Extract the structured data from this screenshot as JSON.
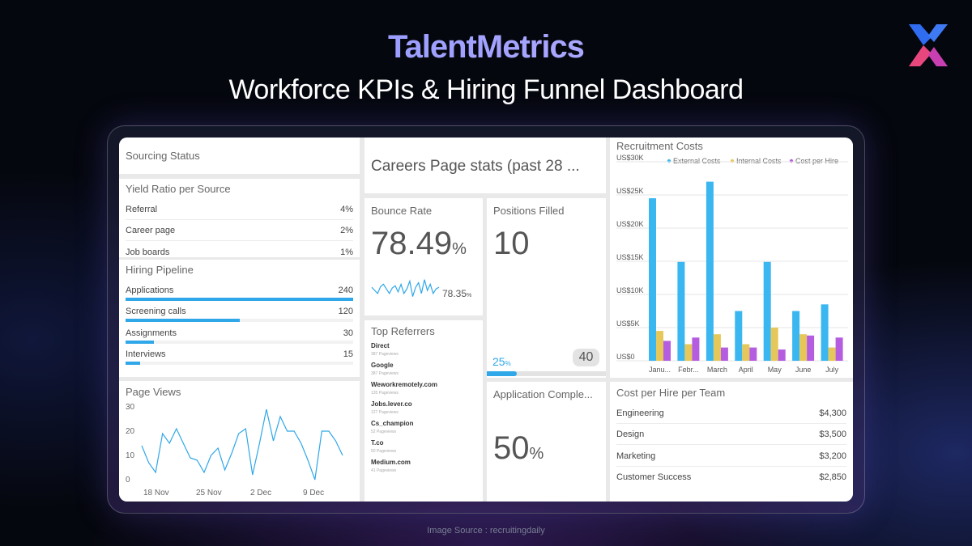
{
  "header": {
    "brand": "TalentMetrics",
    "subtitle": "Workforce KPIs & Hiring Funnel Dashboard",
    "logo_icon": "x-logo-icon"
  },
  "credit": "Image Source : recruitingdaily",
  "colors": {
    "accent_blue": "#2fa7e8",
    "external": "#3ab6f0",
    "internal": "#e6c85a",
    "cost_per_hire": "#b55de0"
  },
  "sourcing_status": {
    "title": "Sourcing Status"
  },
  "yield_ratio": {
    "title": "Yield Ratio per Source",
    "rows": [
      {
        "label": "Referral",
        "value": "4%"
      },
      {
        "label": "Career page",
        "value": "2%"
      },
      {
        "label": "Job boards",
        "value": "1%"
      }
    ]
  },
  "hiring_pipeline": {
    "title": "Hiring Pipeline",
    "rows": [
      {
        "label": "Applications",
        "value": "240",
        "fraction": 1.0
      },
      {
        "label": "Screening calls",
        "value": "120",
        "fraction": 0.5
      },
      {
        "label": "Assignments",
        "value": "30",
        "fraction": 0.125
      },
      {
        "label": "Interviews",
        "value": "15",
        "fraction": 0.0625
      }
    ]
  },
  "page_views": {
    "title": "Page Views",
    "y_ticks": [
      "30",
      "20",
      "10",
      "0"
    ],
    "x_ticks": [
      "18 Nov",
      "25 Nov",
      "2 Dec",
      "9 Dec"
    ],
    "values": [
      14,
      7,
      3,
      19,
      15,
      21,
      15,
      9,
      8,
      3,
      10,
      13,
      4,
      11,
      19,
      21,
      2,
      15,
      29,
      16,
      26,
      20,
      20,
      15,
      8,
      0,
      20,
      20,
      16,
      10
    ]
  },
  "careers_stats": {
    "title": "Careers Page stats (past 28 ..."
  },
  "bounce_rate": {
    "title": "Bounce Rate",
    "value": "78.49",
    "unit": "%",
    "spark_value": "78.35",
    "spark_unit": "%",
    "spark": [
      60,
      50,
      40,
      62,
      70,
      55,
      40,
      58,
      65,
      45,
      70,
      40,
      55,
      80,
      30,
      60,
      75,
      40,
      85,
      50,
      70,
      40,
      55,
      60
    ]
  },
  "positions_filled": {
    "title": "Positions Filled",
    "value": "10",
    "percent": "25",
    "percent_unit": "%",
    "target": "40",
    "progress": 0.25
  },
  "top_referrers": {
    "title": "Top Referrers",
    "items": [
      {
        "name": "Direct",
        "sub": "387 Pageviews"
      },
      {
        "name": "Google",
        "sub": "387 Pageviews"
      },
      {
        "name": "Weworkremotely.com",
        "sub": "135 Pageviews"
      },
      {
        "name": "Jobs.lever.co",
        "sub": "127 Pageviews"
      },
      {
        "name": "Cs_champion",
        "sub": "52 Pageviews"
      },
      {
        "name": "T.co",
        "sub": "50 Pageviews"
      },
      {
        "name": "Medium.com",
        "sub": "41 Pageviews"
      }
    ]
  },
  "application_completion": {
    "title": "Application Comple...",
    "value": "50",
    "unit": "%"
  },
  "cost_per_team": {
    "title": "Cost per Hire per Team",
    "rows": [
      {
        "label": "Engineering",
        "value": "$4,300"
      },
      {
        "label": "Design",
        "value": "$3,500"
      },
      {
        "label": "Marketing",
        "value": "$3,200"
      },
      {
        "label": "Customer Success",
        "value": "$2,850"
      }
    ]
  },
  "chart_data": {
    "type": "bar",
    "title": "Recruitment Costs",
    "categories": [
      "Janu...",
      "Febr...",
      "March",
      "April",
      "May",
      "June",
      "July"
    ],
    "series": [
      {
        "name": "External Costs",
        "values": [
          24500,
          14900,
          27000,
          7500,
          14900,
          7500,
          8500
        ]
      },
      {
        "name": "Internal Costs",
        "values": [
          4500,
          2500,
          4000,
          2500,
          5000,
          4000,
          2000
        ]
      },
      {
        "name": "Cost per Hire",
        "values": [
          3000,
          3500,
          2000,
          2000,
          1700,
          3800,
          3500
        ]
      }
    ],
    "y_ticks": [
      "US$30K",
      "US$25K",
      "US$20K",
      "US$15K",
      "US$10K",
      "US$5K",
      "US$0"
    ],
    "ylim": [
      0,
      30000
    ],
    "legend": "top-right",
    "xlabel": "",
    "ylabel": ""
  }
}
